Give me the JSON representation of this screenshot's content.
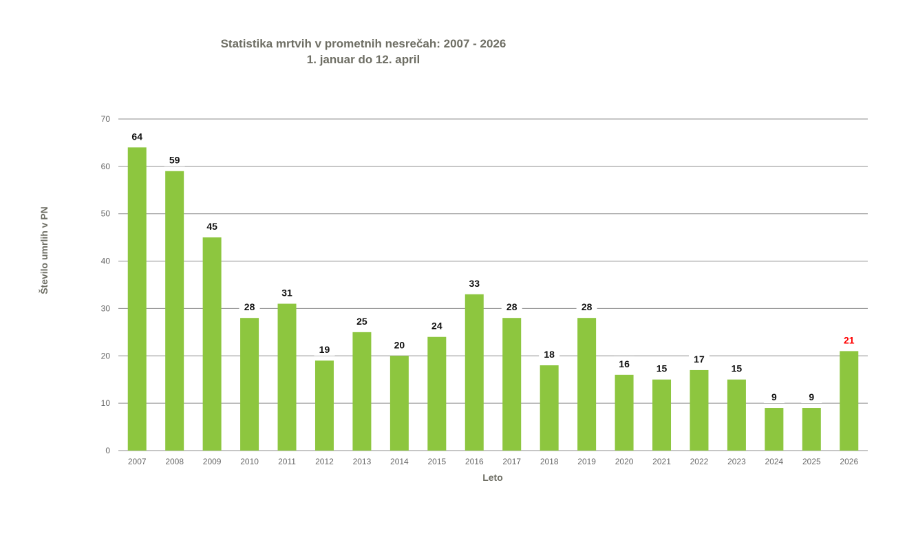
{
  "chart_data": {
    "type": "bar",
    "title": "Statistika mrtvih v prometnih nesrečah: 2007 - 2026",
    "subtitle": "1. januar do 12. april",
    "xlabel": "Leto",
    "ylabel": "Število umrlih v PN",
    "categories": [
      "2007",
      "2008",
      "2009",
      "2010",
      "2011",
      "2012",
      "2013",
      "2014",
      "2015",
      "2016",
      "2017",
      "2018",
      "2019",
      "2020",
      "2021",
      "2022",
      "2023",
      "2024",
      "2025",
      "2026"
    ],
    "values": [
      64,
      59,
      45,
      28,
      31,
      19,
      25,
      20,
      24,
      33,
      28,
      18,
      28,
      16,
      15,
      17,
      15,
      9,
      9,
      21
    ],
    "ylim": [
      0,
      70
    ],
    "yticks": [
      0,
      10,
      20,
      30,
      40,
      50,
      60,
      70
    ],
    "grid": true,
    "legend": "none",
    "colors": {
      "bar": "#8dc63f",
      "label": "#111111",
      "highlight_label": "#ff0000",
      "grid": "#8c8c8c"
    },
    "highlight_index": 19
  }
}
